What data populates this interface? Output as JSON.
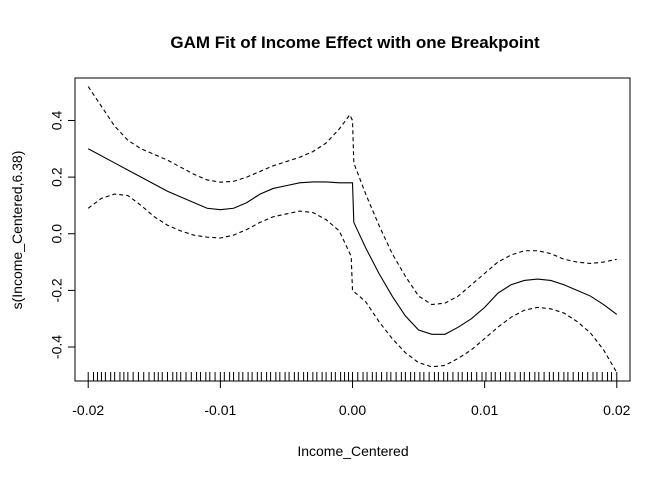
{
  "chart_data": {
    "type": "line",
    "title": "GAM Fit of Income Effect with one Breakpoint",
    "xlabel": "Income_Centered",
    "ylabel": "s(Income_Centered,6.38)",
    "xlim": [
      -0.021,
      0.021
    ],
    "ylim": [
      -0.52,
      0.55
    ],
    "x_ticks": [
      -0.02,
      -0.01,
      0.0,
      0.01,
      0.02
    ],
    "x_tick_labels": [
      "-0.02",
      "-0.01",
      "0.00",
      "0.01",
      "0.02"
    ],
    "y_ticks": [
      -0.4,
      -0.2,
      0.0,
      0.2,
      0.4
    ],
    "y_tick_labels": [
      "-0.4",
      "-0.2",
      "0.0",
      "0.2",
      "0.4"
    ],
    "grid": false,
    "series": [
      {
        "style": "solid",
        "x": [
          -0.02,
          -0.018,
          -0.016,
          -0.014,
          -0.012,
          -0.011,
          -0.01,
          -0.009,
          -0.008,
          -0.007,
          -0.006,
          -0.005,
          -0.004,
          -0.003,
          -0.002,
          -0.001,
          0.0,
          0.0001,
          0.001,
          0.002,
          0.003,
          0.004,
          0.005,
          0.006,
          0.007,
          0.008,
          0.009,
          0.01,
          0.011,
          0.012,
          0.013,
          0.014,
          0.015,
          0.016,
          0.017,
          0.018,
          0.019,
          0.02
        ],
        "y": [
          0.3,
          0.25,
          0.2,
          0.15,
          0.11,
          0.09,
          0.085,
          0.09,
          0.11,
          0.14,
          0.16,
          0.17,
          0.18,
          0.183,
          0.183,
          0.18,
          0.18,
          0.04,
          -0.05,
          -0.14,
          -0.22,
          -0.29,
          -0.34,
          -0.355,
          -0.355,
          -0.33,
          -0.3,
          -0.26,
          -0.21,
          -0.18,
          -0.165,
          -0.16,
          -0.165,
          -0.18,
          -0.2,
          -0.22,
          -0.25,
          -0.285
        ]
      },
      {
        "style": "dashed",
        "x": [
          -0.02,
          -0.019,
          -0.018,
          -0.017,
          -0.016,
          -0.015,
          -0.014,
          -0.013,
          -0.012,
          -0.011,
          -0.01,
          -0.009,
          -0.008,
          -0.007,
          -0.006,
          -0.005,
          -0.004,
          -0.003,
          -0.002,
          -0.001,
          -0.0002,
          0.0,
          0.0001,
          0.001,
          0.002,
          0.003,
          0.004,
          0.005,
          0.006,
          0.007,
          0.008,
          0.009,
          0.01,
          0.011,
          0.012,
          0.013,
          0.014,
          0.015,
          0.016,
          0.017,
          0.018,
          0.019,
          0.02
        ],
        "y": [
          0.52,
          0.45,
          0.38,
          0.33,
          0.3,
          0.28,
          0.26,
          0.235,
          0.21,
          0.19,
          0.182,
          0.185,
          0.2,
          0.22,
          0.24,
          0.255,
          0.27,
          0.29,
          0.32,
          0.37,
          0.42,
          0.4,
          0.25,
          0.14,
          0.03,
          -0.07,
          -0.15,
          -0.22,
          -0.25,
          -0.245,
          -0.22,
          -0.18,
          -0.14,
          -0.1,
          -0.075,
          -0.06,
          -0.06,
          -0.07,
          -0.09,
          -0.1,
          -0.105,
          -0.1,
          -0.09
        ]
      },
      {
        "style": "dashed",
        "x": [
          -0.02,
          -0.019,
          -0.018,
          -0.017,
          -0.016,
          -0.015,
          -0.014,
          -0.013,
          -0.012,
          -0.011,
          -0.01,
          -0.009,
          -0.008,
          -0.007,
          -0.006,
          -0.005,
          -0.004,
          -0.003,
          -0.002,
          -0.001,
          -0.0001,
          0.0,
          0.001,
          0.002,
          0.003,
          0.004,
          0.005,
          0.006,
          0.007,
          0.008,
          0.009,
          0.01,
          0.011,
          0.012,
          0.013,
          0.014,
          0.015,
          0.016,
          0.017,
          0.018,
          0.019,
          0.02
        ],
        "y": [
          0.09,
          0.125,
          0.14,
          0.135,
          0.1,
          0.06,
          0.03,
          0.01,
          -0.005,
          -0.012,
          -0.015,
          -0.005,
          0.015,
          0.04,
          0.06,
          0.07,
          0.08,
          0.075,
          0.05,
          0.01,
          -0.08,
          -0.2,
          -0.24,
          -0.31,
          -0.37,
          -0.42,
          -0.455,
          -0.47,
          -0.465,
          -0.44,
          -0.41,
          -0.37,
          -0.33,
          -0.295,
          -0.27,
          -0.26,
          -0.265,
          -0.28,
          -0.31,
          -0.35,
          -0.41,
          -0.49
        ]
      }
    ],
    "rug_x": [
      -0.02,
      -0.0196,
      -0.0193,
      -0.019,
      -0.0187,
      -0.0183,
      -0.018,
      -0.0176,
      -0.0173,
      -0.017,
      -0.0166,
      -0.0162,
      -0.0158,
      -0.0154,
      -0.015,
      -0.0147,
      -0.0144,
      -0.014,
      -0.0136,
      -0.0133,
      -0.013,
      -0.0126,
      -0.0122,
      -0.0118,
      -0.0115,
      -0.0111,
      -0.0108,
      -0.0104,
      -0.01,
      -0.0097,
      -0.0093,
      -0.009,
      -0.0086,
      -0.0083,
      -0.0079,
      -0.0076,
      -0.0072,
      -0.0069,
      -0.0065,
      -0.0062,
      -0.0058,
      -0.0055,
      -0.0051,
      -0.0048,
      -0.0044,
      -0.0041,
      -0.0037,
      -0.0034,
      -0.003,
      -0.0027,
      -0.0023,
      -0.002,
      -0.0016,
      -0.0013,
      -0.0009,
      -0.0006,
      -0.0003,
      0.0,
      0.0004,
      0.0008,
      0.0011,
      0.0015,
      0.0018,
      0.0022,
      0.0026,
      0.0029,
      0.0033,
      0.0037,
      0.004,
      0.0044,
      0.0047,
      0.0051,
      0.0054,
      0.0058,
      0.0062,
      0.0065,
      0.0069,
      0.0072,
      0.0076,
      0.008,
      0.0083,
      0.0087,
      0.009,
      0.0094,
      0.0098,
      0.0101,
      0.0105,
      0.0108,
      0.0112,
      0.0116,
      0.0119,
      0.0123,
      0.0127,
      0.013,
      0.0134,
      0.0138,
      0.0141,
      0.0145,
      0.0149,
      0.0152,
      0.0156,
      0.016,
      0.0163,
      0.0167,
      0.0171,
      0.0174,
      0.0178,
      0.0182,
      0.0185,
      0.0189,
      0.0193,
      0.0196,
      0.02
    ]
  }
}
